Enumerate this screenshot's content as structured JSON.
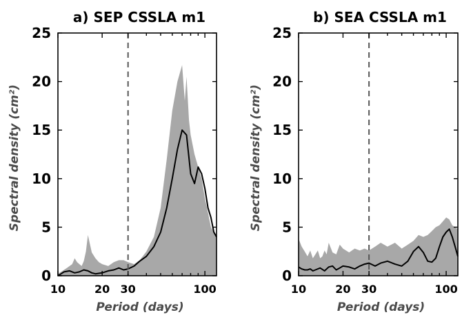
{
  "chart_data": [
    {
      "type": "area",
      "title": "a) SEP CSSLA m1",
      "xlabel": "Period (days)",
      "ylabel": "Spectral density (cm²)",
      "xscale": "log",
      "xlim": [
        10,
        120
      ],
      "ylim": [
        0,
        25
      ],
      "xticks": [
        10,
        20,
        30,
        100
      ],
      "yticks": [
        0,
        5,
        10,
        15,
        20,
        25
      ],
      "reference_line_x": 30,
      "series": [
        {
          "role": "shaded spectrum",
          "x": [
            10,
            10.5,
            11,
            11.5,
            12,
            12.5,
            13,
            13.5,
            14,
            14.5,
            15,
            15.5,
            16,
            17,
            18,
            19,
            20,
            22,
            24,
            26,
            28,
            30,
            33,
            36,
            40,
            45,
            50,
            55,
            60,
            65,
            70,
            73,
            75,
            78,
            80,
            85,
            90,
            95,
            100,
            105,
            110,
            115,
            120
          ],
          "y": [
            0.2,
            0.4,
            0.6,
            0.8,
            1.0,
            1.2,
            1.8,
            1.4,
            1.2,
            1.0,
            1.5,
            2.5,
            4.2,
            2.4,
            1.8,
            1.4,
            1.2,
            1.0,
            1.4,
            1.6,
            1.6,
            1.4,
            1.2,
            1.6,
            2.5,
            4.0,
            7.0,
            12.0,
            17.0,
            20.0,
            21.7,
            18.0,
            20.5,
            16.0,
            14.5,
            12.5,
            11.2,
            10.0,
            8.0,
            6.5,
            5.0,
            4.5,
            4.0
          ]
        },
        {
          "role": "black curve",
          "x": [
            10,
            10.5,
            11,
            12,
            13,
            14,
            15,
            16,
            17,
            18,
            19,
            20,
            22,
            24,
            26,
            28,
            30,
            33,
            36,
            40,
            45,
            50,
            55,
            60,
            65,
            70,
            75,
            80,
            85,
            90,
            95,
            100,
            105,
            110,
            115,
            120
          ],
          "y": [
            0.0,
            0.2,
            0.4,
            0.5,
            0.3,
            0.4,
            0.6,
            0.5,
            0.3,
            0.2,
            0.25,
            0.3,
            0.5,
            0.6,
            0.8,
            0.6,
            0.7,
            1.0,
            1.5,
            2.0,
            3.0,
            4.5,
            7.0,
            10.0,
            13.0,
            15.0,
            14.5,
            10.5,
            9.5,
            11.2,
            10.5,
            9.0,
            7.0,
            6.0,
            4.5,
            4.0
          ]
        }
      ]
    },
    {
      "type": "area",
      "title": "b) SEA CSSLA m1",
      "xlabel": "Period (days)",
      "ylabel": "Spectral density (cm²)",
      "xscale": "log",
      "xlim": [
        10,
        120
      ],
      "ylim": [
        0,
        25
      ],
      "xticks": [
        10,
        20,
        30,
        100
      ],
      "yticks": [
        0,
        5,
        10,
        15,
        20,
        25
      ],
      "reference_line_x": 30,
      "series": [
        {
          "role": "shaded spectrum",
          "x": [
            10,
            10.5,
            11,
            11.5,
            12,
            12.5,
            13,
            13.5,
            14,
            14.5,
            15,
            15.5,
            16,
            17,
            18,
            19,
            20,
            22,
            24,
            26,
            28,
            30,
            33,
            36,
            40,
            45,
            50,
            55,
            60,
            65,
            70,
            75,
            80,
            85,
            90,
            95,
            100,
            105,
            110,
            115,
            120
          ],
          "y": [
            3.8,
            3.0,
            2.5,
            2.0,
            2.6,
            1.8,
            2.2,
            2.6,
            1.8,
            2.0,
            2.6,
            2.2,
            3.4,
            2.4,
            2.2,
            3.2,
            2.8,
            2.4,
            2.8,
            2.6,
            2.8,
            2.6,
            3.0,
            3.4,
            3.0,
            3.4,
            2.8,
            3.2,
            3.6,
            4.2,
            4.0,
            4.2,
            4.6,
            5.0,
            5.2,
            5.6,
            6.0,
            5.8,
            5.2,
            5.0,
            4.8
          ]
        },
        {
          "role": "black curve",
          "x": [
            10,
            10.5,
            11,
            11.5,
            12,
            12.5,
            13,
            14,
            15,
            16,
            17,
            18,
            19,
            20,
            22,
            24,
            26,
            28,
            30,
            33,
            36,
            40,
            45,
            50,
            55,
            60,
            65,
            70,
            75,
            80,
            85,
            90,
            95,
            100,
            105,
            110,
            115,
            120
          ],
          "y": [
            0.9,
            0.7,
            0.6,
            0.6,
            0.7,
            0.5,
            0.6,
            0.8,
            0.5,
            0.9,
            1.0,
            0.6,
            0.8,
            1.0,
            0.9,
            0.7,
            1.0,
            1.2,
            1.3,
            1.0,
            1.3,
            1.5,
            1.2,
            1.0,
            1.5,
            2.5,
            3.0,
            2.4,
            1.5,
            1.4,
            1.8,
            3.0,
            4.0,
            4.5,
            4.8,
            4.0,
            3.0,
            2.0
          ]
        }
      ]
    }
  ]
}
